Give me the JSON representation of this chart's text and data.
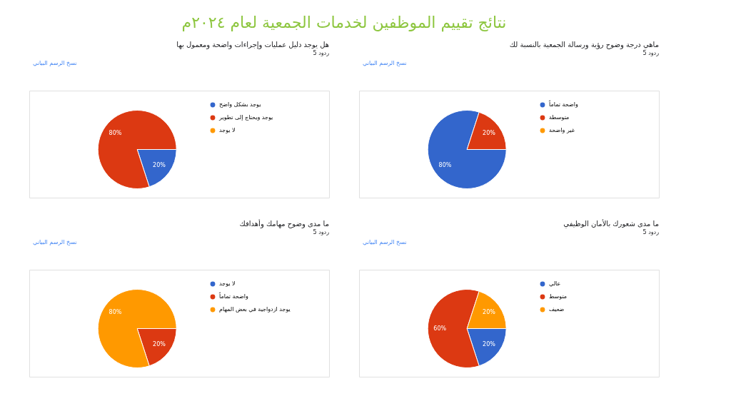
{
  "chart_data": [
    {
      "type": "pie",
      "title": "هل يوجد دليل عمليات وإجراءات واضحة ومعمول بها",
      "subtitle": "5 ردود",
      "annotations": [
        "نتائج تقييم الموظفين لخدمات الجمعية لعام ٢٠٢٤م",
        "نسخ الرسم البياني"
      ],
      "categories": [
        "يوجد بشكل واضح",
        "يوجد ويحتاج إلى تطوير",
        "لا يوجد"
      ],
      "values": [
        20,
        80,
        0
      ],
      "colors": [
        "#3366cc",
        "#dc3912",
        "#ff9900"
      ],
      "value_labels": [
        "20%",
        "80%",
        null
      ],
      "legend": "right"
    },
    {
      "type": "pie",
      "title": "ماهي درجة وضوح رؤية ورسالة الجمعية بالنسبة لك",
      "subtitle": "5 ردود",
      "annotations": [
        "نسخ الرسم البياني"
      ],
      "categories": [
        "واضحة تماماً",
        "متوسطة",
        "غير واضحة"
      ],
      "values": [
        80,
        20,
        0
      ],
      "colors": [
        "#3366cc",
        "#dc3912",
        "#ff9900"
      ],
      "value_labels": [
        "80%",
        "20%",
        null
      ],
      "legend": "right"
    },
    {
      "type": "pie",
      "title": "ما مدى وضوح مهامك وأهدافك",
      "subtitle": "5 ردود",
      "annotations": [
        "نسخ الرسم البياني"
      ],
      "categories": [
        "لا يوجد",
        "واضحة تماماً",
        "يوجد ازدواجية في بعض المهام"
      ],
      "values": [
        0,
        20,
        80
      ],
      "colors": [
        "#3366cc",
        "#dc3912",
        "#ff9900"
      ],
      "value_labels": [
        null,
        "20%",
        "80%"
      ],
      "legend": "right"
    },
    {
      "type": "pie",
      "title": "ما مدى شعورك بالأمان الوظيفي",
      "subtitle": "5 ردود",
      "annotations": [
        "نسخ الرسم البياني"
      ],
      "categories": [
        "عالي",
        "متوسط",
        "ضعيف"
      ],
      "values": [
        20,
        60,
        20
      ],
      "colors": [
        "#3366cc",
        "#dc3912",
        "#ff9900"
      ],
      "value_labels": [
        "20%",
        "60%",
        "20%"
      ],
      "legend": "right"
    }
  ]
}
